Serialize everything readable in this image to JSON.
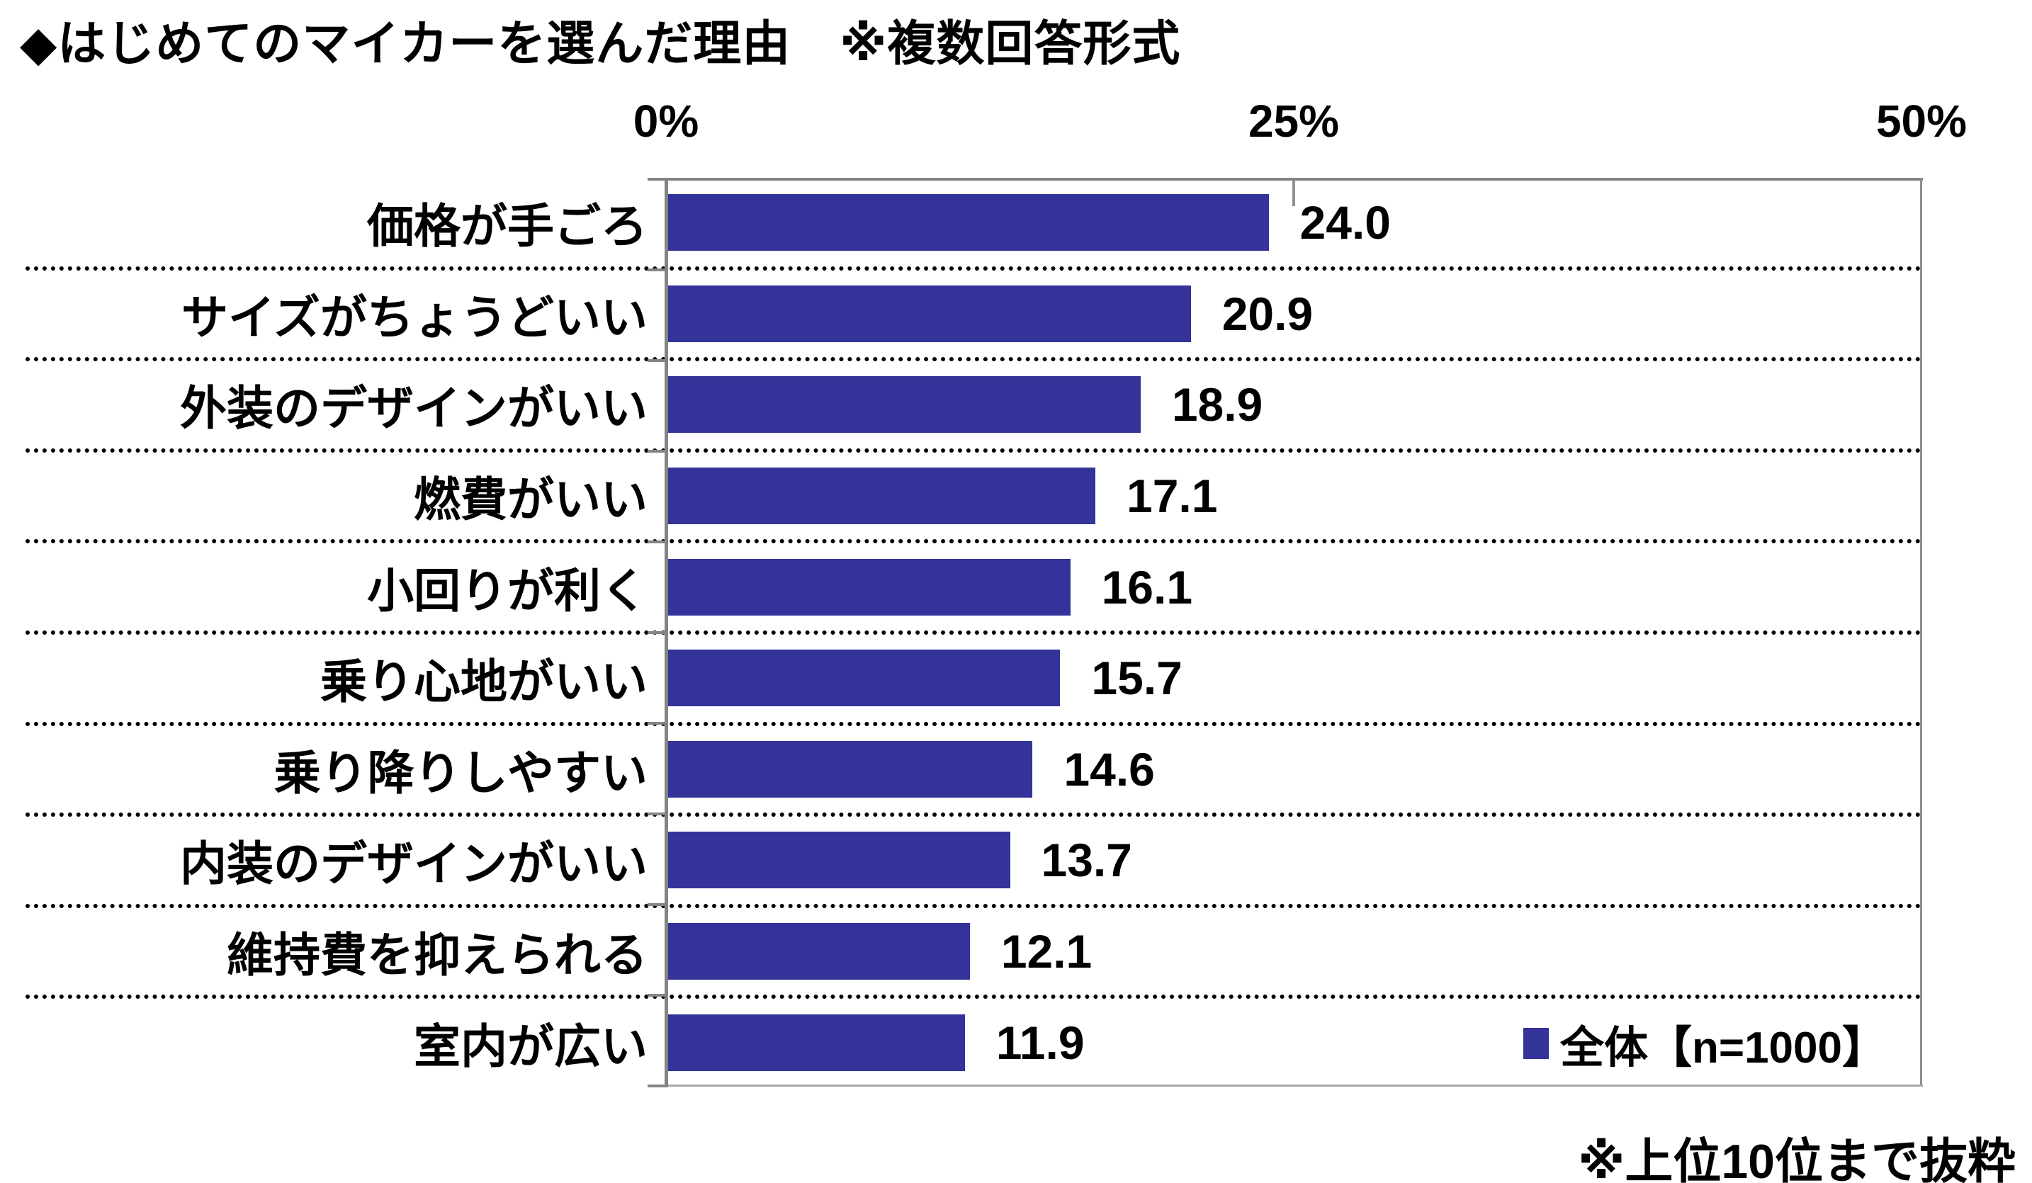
{
  "title": "◆はじめてのマイカーを選んだ理由　※複数回答形式",
  "footnote": "※上位10位まで抜粋",
  "legend": {
    "label": "全体【n=1000】",
    "marker_color": "#333399"
  },
  "chart_data": {
    "type": "bar",
    "orientation": "horizontal",
    "title": "◆はじめてのマイカーを選んだ理由　※複数回答形式",
    "categories": [
      "価格が手ごろ",
      "サイズがちょうどいい",
      "外装のデザインがいい",
      "燃費がいい",
      "小回りが利く",
      "乗り心地がいい",
      "乗り降りしやすい",
      "内装のデザインがいい",
      "維持費を抑えられる",
      "室内が広い"
    ],
    "series": [
      {
        "name": "全体【n=1000】",
        "values": [
          24.0,
          20.9,
          18.9,
          17.1,
          16.1,
          15.7,
          14.6,
          13.7,
          12.1,
          11.9
        ]
      }
    ],
    "xlabel": "",
    "ylabel": "",
    "x_ticks": [
      "0%",
      "25%",
      "50%"
    ],
    "xlim": [
      0,
      50
    ],
    "value_labels": [
      "24.0",
      "20.9",
      "18.9",
      "17.1",
      "16.1",
      "15.7",
      "14.6",
      "13.7",
      "12.1",
      "11.9"
    ],
    "bar_color": "#333399",
    "grid": "dotted horizontal category separators",
    "legend_position": "bottom-right",
    "annotation": "※上位10位まで抜粋"
  },
  "colors": {
    "bar": "#333399",
    "axis": "#848484",
    "frame": "#a9a9a9",
    "text": "#000000"
  }
}
